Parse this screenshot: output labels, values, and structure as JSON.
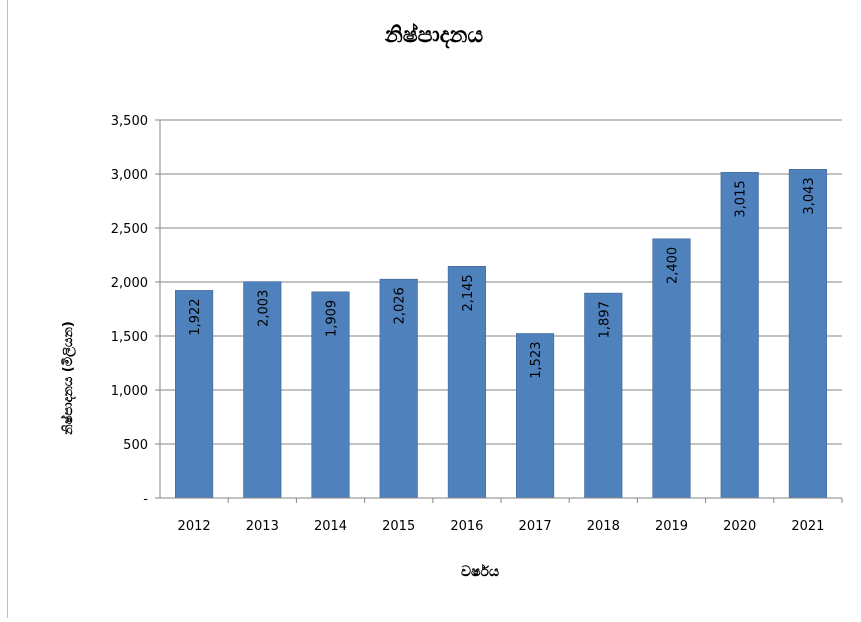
{
  "chart_data": {
    "type": "bar",
    "title": "නිෂ්පාදනය",
    "xlabel": "වර්ෂය",
    "ylabel": "නිෂ්පාදනය (මිලියන)",
    "categories": [
      "2012",
      "2013",
      "2014",
      "2015",
      "2016",
      "2017",
      "2018",
      "2019",
      "2020",
      "2021"
    ],
    "values": [
      1922,
      2003,
      1909,
      2026,
      2145,
      1523,
      1897,
      2400,
      3015,
      3043
    ],
    "value_labels": [
      "1,922",
      "2,003",
      "1,909",
      "2,026",
      "2,145",
      "1,523",
      "1,897",
      "2,400",
      "3,015",
      "3,043"
    ],
    "ylim": [
      0,
      3500
    ],
    "yticks": [
      0,
      500,
      1000,
      1500,
      2000,
      2500,
      3000,
      3500
    ],
    "ytick_labels": [
      "-",
      "500",
      "1,000",
      "1,500",
      "2,000",
      "2,500",
      "3,000",
      "3,500"
    ],
    "grid": true,
    "legend": "none",
    "bar_color": "#4f81bd",
    "bar_edge_color": "#3c6494"
  }
}
